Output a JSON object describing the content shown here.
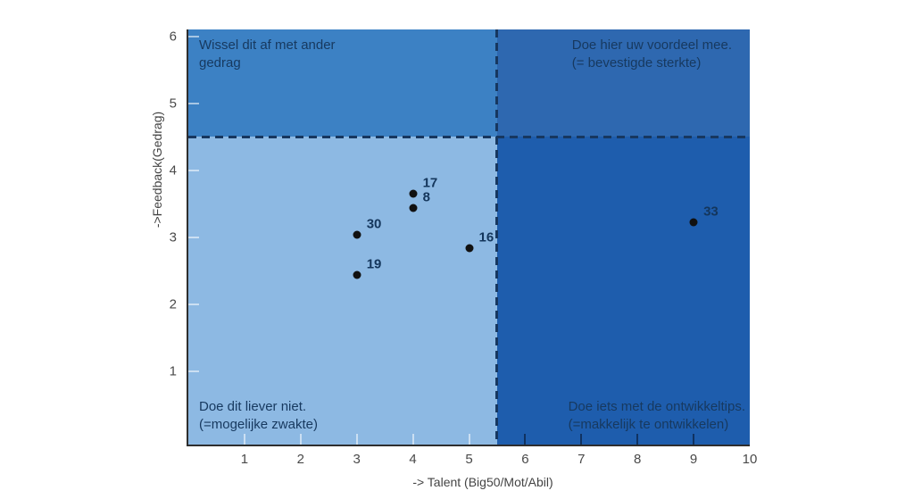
{
  "chart_data": {
    "type": "scatter",
    "xlabel": "-> Talent (Big50/Mot/Abil)",
    "ylabel": "->Feedback(Gedrag)",
    "xlim": [
      0,
      10
    ],
    "ylim": [
      -0.1,
      6.1
    ],
    "x_ticks": [
      1,
      2,
      3,
      4,
      5,
      6,
      7,
      8,
      9,
      10
    ],
    "y_ticks": [
      1,
      2,
      3,
      4,
      5,
      6
    ],
    "divider_x": 5.5,
    "divider_y": 4.5,
    "grid": false,
    "legend": "none",
    "points": [
      {
        "label": "17",
        "x": 4.0,
        "y": 3.65
      },
      {
        "label": "8",
        "x": 4.0,
        "y": 3.43
      },
      {
        "label": "30",
        "x": 3.0,
        "y": 3.03
      },
      {
        "label": "19",
        "x": 3.0,
        "y": 2.43
      },
      {
        "label": "16",
        "x": 5.0,
        "y": 2.83
      },
      {
        "label": "33",
        "x": 9.0,
        "y": 3.22
      }
    ],
    "quadrants": {
      "top_left": {
        "label": "Wissel dit af met ander\ngedrag",
        "color": "#3c81c4"
      },
      "top_right": {
        "label": "Doe hier uw voordeel mee.\n(= bevestigde sterkte)",
        "color": "#2e68b0"
      },
      "bottom_left": {
        "label": "Doe dit liever niet.\n(=mogelijke zwakte)",
        "color": "#8db9e3"
      },
      "bottom_right": {
        "label": "Doe iets met de ontwikkeltips.\n(=makkelijk te ontwikkelen)",
        "color": "#1e5dad"
      }
    },
    "colors": {
      "dashed_line": "#17375f",
      "point": "#111111",
      "point_label": "#14365c",
      "quadrant_text": "#17395f",
      "tick_label": "#4a4a4a",
      "axis_label": "#444444",
      "spine": "#2e2e2e",
      "tick_light": "rgba(255,255,255,0.55)",
      "tick_dark": "rgba(12,40,78,0.8)"
    }
  }
}
